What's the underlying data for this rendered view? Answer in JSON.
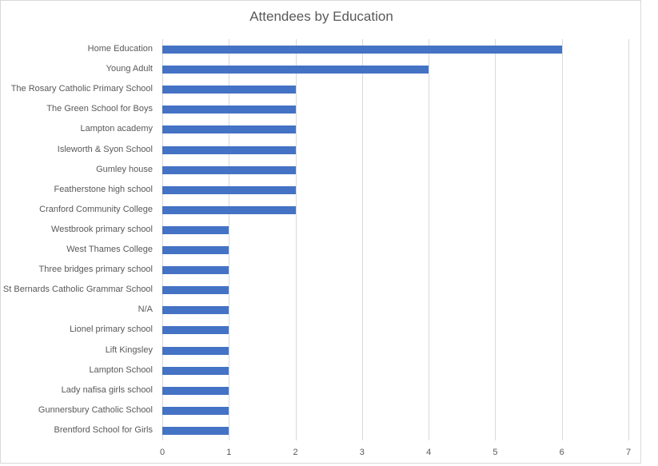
{
  "chart_data": {
    "type": "bar",
    "orientation": "horizontal",
    "title": "Attendees by Education",
    "xlabel": "",
    "ylabel": "",
    "xlim": [
      0,
      7
    ],
    "x_ticks": [
      "0",
      "1",
      "2",
      "3",
      "4",
      "5",
      "6",
      "7"
    ],
    "grid": true,
    "legend": null,
    "bar_color": "#4472c4",
    "categories": [
      "Home Education",
      "Young Adult",
      "The Rosary Catholic Primary School",
      "The Green School for Boys",
      "Lampton academy",
      "Isleworth & Syon School",
      "Gumley house",
      "Featherstone high school",
      "Cranford Community College",
      "Westbrook primary school",
      "West Thames College",
      "Three bridges primary school",
      "St Bernards Catholic Grammar School",
      "N/A",
      "Lionel primary school",
      "Lift Kingsley",
      "Lampton School",
      "Lady nafisa girls school",
      "Gunnersbury Catholic School",
      "Brentford School for Girls"
    ],
    "values": [
      6,
      4,
      2,
      2,
      2,
      2,
      2,
      2,
      2,
      1,
      1,
      1,
      1,
      1,
      1,
      1,
      1,
      1,
      1,
      1
    ]
  }
}
